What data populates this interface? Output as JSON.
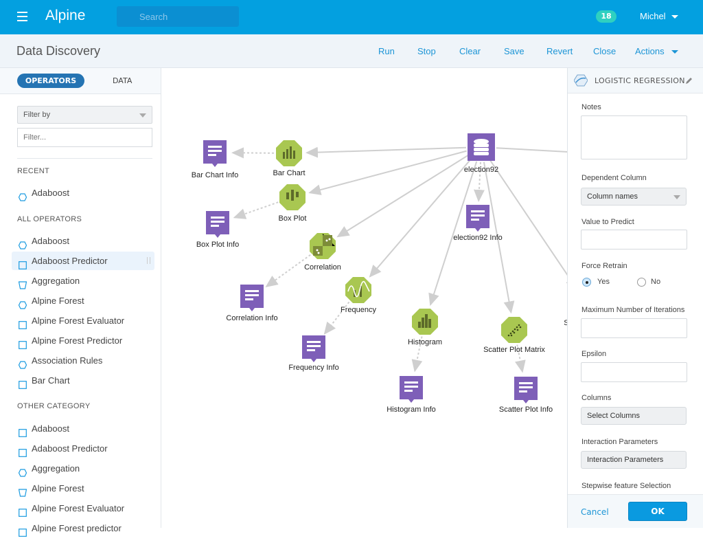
{
  "topbar": {
    "app_name": "Alpine",
    "search_placeholder": "Search",
    "notification_count": "18",
    "user_name": "Michel",
    "brand_color": "#03a0e0"
  },
  "header": {
    "title": "Data Discovery",
    "actions": [
      "Run",
      "Stop",
      "Clear",
      "Save",
      "Revert",
      "Close",
      "Actions"
    ]
  },
  "sidebar": {
    "tabs": [
      "OPERATORS",
      "DATA"
    ],
    "active_tab": "OPERATORS",
    "filter_select": "Filter by",
    "filter_placeholder": "Filter...",
    "sections": [
      {
        "title": "RECENT",
        "items": [
          {
            "label": "Adaboost",
            "icon": "hexagon"
          }
        ]
      },
      {
        "title": "ALL OPERATORS",
        "items": [
          {
            "label": "Adaboost",
            "icon": "hexagon"
          },
          {
            "label": "Adaboost Predictor",
            "icon": "square"
          },
          {
            "label": "Aggregation",
            "icon": "trapezoid"
          },
          {
            "label": "Alpine Forest",
            "icon": "hexagon"
          },
          {
            "label": "Alpine Forest Evaluator",
            "icon": "square"
          },
          {
            "label": "Alpine Forest Predictor",
            "icon": "square"
          },
          {
            "label": "Association Rules",
            "icon": "hexagon"
          },
          {
            "label": "Bar Chart",
            "icon": "square"
          }
        ]
      },
      {
        "title": "OTHER CATEGORY",
        "items": [
          {
            "label": "Adaboost",
            "icon": "square"
          },
          {
            "label": "Adaboost Predictor",
            "icon": "square"
          },
          {
            "label": "Aggregation",
            "icon": "hexagon"
          },
          {
            "label": "Alpine Forest",
            "icon": "trapezoid"
          },
          {
            "label": "Alpine Forest Evaluator",
            "icon": "square"
          },
          {
            "label": "Alpine Forest predictor",
            "icon": "square"
          }
        ]
      }
    ]
  },
  "canvas": {
    "nodes": [
      {
        "label": "election92",
        "type": "dataset"
      },
      {
        "label": "Bar Chart",
        "type": "operator",
        "icon": "bar-chart"
      },
      {
        "label": "Bar Chart Info",
        "type": "info"
      },
      {
        "label": "Box Plot",
        "type": "operator",
        "icon": "box-plot"
      },
      {
        "label": "Box Plot Info",
        "type": "info"
      },
      {
        "label": "Correlation",
        "type": "operator",
        "icon": "correlation"
      },
      {
        "label": "Correlation Info",
        "type": "info"
      },
      {
        "label": "Frequency",
        "type": "operator",
        "icon": "frequency"
      },
      {
        "label": "Frequency Info",
        "type": "info"
      },
      {
        "label": "election92 Info",
        "type": "info"
      },
      {
        "label": "Histogram",
        "type": "operator",
        "icon": "histogram"
      },
      {
        "label": "Histogram Info",
        "type": "info"
      },
      {
        "label": "Scatter Plot Matrix",
        "type": "operator",
        "icon": "scatter"
      },
      {
        "label": "Scatter Plot Info",
        "type": "info"
      },
      {
        "label": "Su",
        "type": "operator"
      }
    ],
    "colors": {
      "operator": "#a9c751",
      "info": "#7e5fb8",
      "edge": "#cfcfcf"
    }
  },
  "panel": {
    "title": "LOGISTIC REGRESSION",
    "notes_label": "Notes",
    "dependent_column_label": "Dependent Column",
    "dependent_column_value": "Column names",
    "value_to_predict_label": "Value to Predict",
    "force_retrain_label": "Force Retrain",
    "force_retrain_options": [
      "Yes",
      "No"
    ],
    "force_retrain_value": "Yes",
    "max_iterations_label": "Maximum Number of Iterations",
    "epsilon_label": "Epsilon",
    "columns_label": "Columns",
    "columns_button": "Select Columns",
    "interaction_label": "Interaction Parameters",
    "interaction_button": "Interaction Parameters",
    "stepwise_label": "Stepwise feature Selection",
    "cancel": "Cancel",
    "ok": "OK"
  }
}
